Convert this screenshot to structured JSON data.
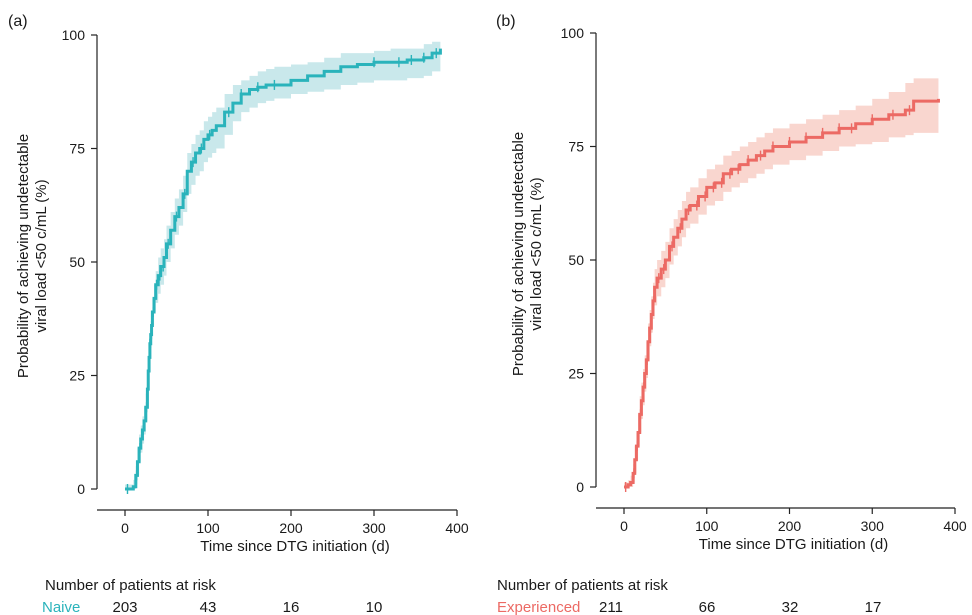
{
  "chart_data": [
    {
      "type": "line",
      "panel_label": "(a)",
      "xlabel": "Time since DTG initiation (d)",
      "ylabel_line1": "Probability of achieving undetectable",
      "ylabel_line2": "viral load <50 c/mL (%)",
      "xlim": [
        0,
        400
      ],
      "ylim": [
        0,
        100
      ],
      "xticks": [
        "0",
        "100",
        "200",
        "300",
        "400"
      ],
      "yticks": [
        "0",
        "25",
        "50",
        "75",
        "100"
      ],
      "grid": false,
      "color": "#2ab3bb",
      "band_color": "#bfe4e8",
      "series": [
        {
          "name": "Naive",
          "x": [
            0,
            5,
            10,
            13,
            15,
            17,
            19,
            21,
            23,
            25,
            27,
            28,
            29,
            30,
            31,
            32,
            33,
            35,
            37,
            40,
            43,
            47,
            50,
            55,
            60,
            65,
            70,
            75,
            80,
            85,
            90,
            95,
            100,
            105,
            110,
            120,
            130,
            140,
            150,
            160,
            170,
            180,
            200,
            220,
            240,
            260,
            280,
            300,
            320,
            340,
            360,
            370,
            380
          ],
          "y": [
            0,
            0,
            0.5,
            3,
            6,
            9,
            11,
            13,
            15,
            18,
            22,
            26,
            29,
            32,
            34,
            36,
            39,
            42,
            45,
            47,
            49,
            51,
            54,
            57,
            60,
            62,
            65,
            70,
            72,
            74,
            75,
            77,
            78,
            79,
            80,
            83,
            85,
            87,
            88,
            88.5,
            89,
            89,
            90,
            91,
            92,
            93,
            93.5,
            94,
            94,
            94.5,
            95,
            96,
            97
          ],
          "lower": [
            0,
            0,
            0,
            1,
            3,
            6,
            8,
            10,
            12,
            15,
            19,
            23,
            26,
            29,
            31,
            33,
            36,
            39,
            41,
            43,
            45,
            47,
            50,
            53,
            56,
            58,
            61,
            65,
            67,
            69,
            70,
            72,
            73,
            74,
            75,
            78,
            81,
            83,
            84,
            85,
            85.5,
            86,
            87,
            87.5,
            88,
            89,
            89.5,
            90,
            90,
            90.5,
            91,
            92,
            93
          ],
          "upper": [
            1,
            1,
            2,
            5,
            9,
            12,
            14,
            16,
            18,
            21,
            25,
            29,
            32,
            35,
            37,
            39,
            42,
            45,
            48,
            51,
            53,
            55,
            58,
            61,
            64,
            66,
            69,
            74,
            76,
            78,
            79,
            81,
            82,
            83,
            84,
            87,
            89,
            90,
            91,
            92,
            92.5,
            93,
            93.5,
            94,
            95,
            96,
            96,
            96.5,
            97,
            97,
            98,
            98.5,
            99
          ]
        }
      ],
      "censor_x": [
        3,
        14,
        18,
        22,
        26,
        30,
        34,
        38,
        42,
        46,
        52,
        62,
        72,
        82,
        92,
        102,
        125,
        140,
        160,
        180,
        300,
        330,
        345,
        360,
        375
      ],
      "risk": {
        "title": "Number of patients at risk",
        "group": "Naive",
        "counts": [
          "203",
          "43",
          "16",
          "10"
        ]
      }
    },
    {
      "type": "line",
      "panel_label": "(b)",
      "xlabel": "Time since DTG initiation (d)",
      "ylabel_line1": "Probability of achieving undetectable",
      "ylabel_line2": "viral load <50 c/mL (%)",
      "xlim": [
        0,
        400
      ],
      "ylim": [
        0,
        100
      ],
      "xticks": [
        "0",
        "100",
        "200",
        "300",
        "400"
      ],
      "yticks": [
        "0",
        "25",
        "50",
        "75",
        "100"
      ],
      "grid": false,
      "color": "#ec6a64",
      "band_color": "#f8cfc7",
      "series": [
        {
          "name": "Experienced",
          "x": [
            0,
            5,
            8,
            11,
            13,
            15,
            17,
            19,
            21,
            23,
            25,
            27,
            29,
            31,
            33,
            35,
            37,
            40,
            45,
            50,
            55,
            60,
            65,
            70,
            75,
            80,
            90,
            100,
            110,
            120,
            130,
            140,
            150,
            160,
            170,
            180,
            200,
            220,
            240,
            260,
            280,
            300,
            320,
            340,
            350,
            380
          ],
          "y": [
            0,
            0.5,
            1,
            3,
            6,
            9,
            12,
            16,
            19,
            22,
            25,
            28,
            32,
            35,
            38,
            41,
            44,
            46,
            48,
            50,
            53,
            55,
            57,
            59,
            61,
            62,
            64,
            66,
            67,
            69,
            70,
            71,
            72,
            73,
            74,
            75,
            76,
            77,
            78,
            79,
            80,
            81,
            82,
            83,
            85,
            85.5
          ],
          "lower": [
            0,
            0,
            0,
            1,
            3,
            6,
            9,
            12,
            15,
            18,
            21,
            24,
            28,
            31,
            34,
            37,
            40,
            42,
            44,
            46,
            49,
            51,
            53,
            55,
            57,
            58,
            60,
            62,
            63,
            65,
            66,
            67,
            68,
            69,
            70,
            71,
            72,
            73,
            74,
            75,
            75.5,
            76,
            77,
            77.5,
            78,
            78
          ],
          "upper": [
            1,
            1.5,
            2.5,
            5,
            9,
            12,
            16,
            20,
            23,
            26,
            29,
            32,
            36,
            39,
            42,
            45,
            48,
            50,
            52,
            54,
            57,
            59,
            61,
            63,
            65,
            66,
            68,
            70,
            71,
            73,
            74,
            75,
            76,
            77,
            78,
            79,
            80,
            81,
            82,
            83,
            84,
            85.5,
            87,
            89,
            90,
            91
          ]
        }
      ],
      "censor_x": [
        2,
        12,
        16,
        20,
        24,
        28,
        32,
        36,
        42,
        48,
        58,
        68,
        78,
        88,
        98,
        108,
        118,
        128,
        138,
        150,
        165,
        180,
        200,
        220,
        240,
        260,
        275,
        300,
        325,
        345
      ],
      "risk": {
        "title": "Number of patients at risk",
        "group": "Experienced",
        "counts": [
          "211",
          "66",
          "32",
          "17"
        ]
      }
    }
  ]
}
